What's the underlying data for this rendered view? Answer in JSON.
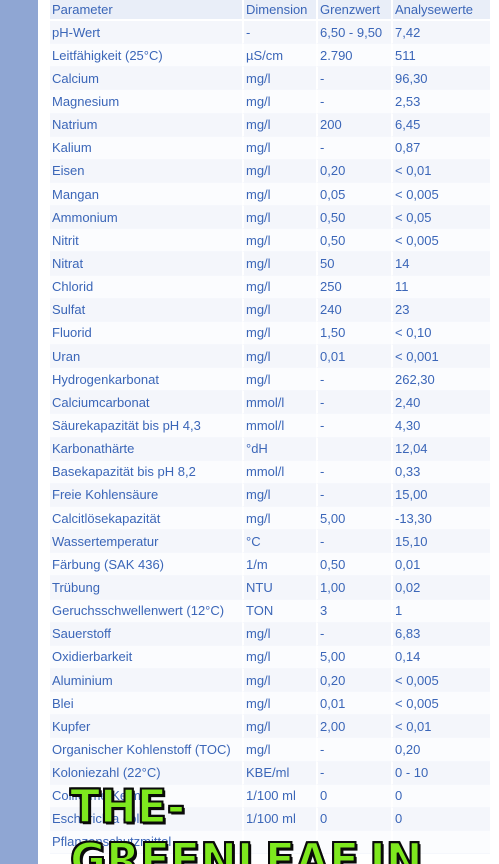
{
  "table": {
    "headers": [
      "Parameter",
      "Dimension",
      "Grenzwert",
      "Analysewerte"
    ],
    "rows": [
      [
        "pH-Wert",
        "-",
        "6,50 - 9,50",
        "7,42"
      ],
      [
        "Leitfähigkeit (25°C)",
        "µS/cm",
        "2.790",
        "511"
      ],
      [
        "Calcium",
        "mg/l",
        "-",
        "96,30"
      ],
      [
        "Magnesium",
        "mg/l",
        "-",
        "2,53"
      ],
      [
        "Natrium",
        "mg/l",
        "200",
        "6,45"
      ],
      [
        "Kalium",
        "mg/l",
        "-",
        "0,87"
      ],
      [
        "Eisen",
        "mg/l",
        "0,20",
        "< 0,01"
      ],
      [
        "Mangan",
        "mg/l",
        "0,05",
        "< 0,005"
      ],
      [
        "Ammonium",
        "mg/l",
        "0,50",
        "< 0,05"
      ],
      [
        "Nitrit",
        "mg/l",
        "0,50",
        "< 0,005"
      ],
      [
        "Nitrat",
        "mg/l",
        "50",
        "14"
      ],
      [
        "Chlorid",
        "mg/l",
        "250",
        "11"
      ],
      [
        "Sulfat",
        "mg/l",
        "240",
        "23"
      ],
      [
        "Fluorid",
        "mg/l",
        "1,50",
        "< 0,10"
      ],
      [
        "Uran",
        "mg/l",
        "0,01",
        "< 0,001"
      ],
      [
        "Hydrogenkarbonat",
        "mg/l",
        "-",
        "262,30"
      ],
      [
        "Calciumcarbonat",
        "mmol/l",
        "-",
        "2,40"
      ],
      [
        "Säurekapazität bis pH 4,3",
        "mmol/l",
        "-",
        "4,30"
      ],
      [
        "Karbonathärte",
        "°dH",
        "",
        "12,04"
      ],
      [
        "Basekapazität bis pH 8,2",
        "mmol/l",
        "-",
        "0,33"
      ],
      [
        "Freie Kohlensäure",
        "mg/l",
        "-",
        "15,00"
      ],
      [
        "Calcitlösekapazität",
        "mg/l",
        "5,00",
        "-13,30"
      ],
      [
        "Wassertemperatur",
        "°C",
        "-",
        "15,10"
      ],
      [
        "Färbung (SAK 436)",
        "1/m",
        "0,50",
        "0,01"
      ],
      [
        "Trübung",
        "NTU",
        "1,00",
        "0,02"
      ],
      [
        "Geruchsschwellenwert (12°C)",
        "TON",
        "3",
        "1"
      ],
      [
        "Sauerstoff",
        "mg/l",
        "-",
        "6,83"
      ],
      [
        "Oxidierbarkeit",
        "mg/l",
        "5,00",
        "0,14"
      ],
      [
        "Aluminium",
        "mg/l",
        "0,20",
        "< 0,005"
      ],
      [
        "Blei",
        "mg/l",
        "0,01",
        "< 0,005"
      ],
      [
        "Kupfer",
        "mg/l",
        "2,00",
        "< 0,01"
      ],
      [
        "Organischer Kohlenstoff (TOC)",
        "mg/l",
        "-",
        "0,20"
      ],
      [
        "Koloniezahl (22°C)",
        "KBE/ml",
        "-",
        "0 - 10"
      ],
      [
        "Coliforme Keime",
        "1/100 ml",
        "0",
        "0"
      ],
      [
        "Escherichia coli",
        "1/100 ml",
        "0",
        "0"
      ],
      [
        "Pflanzenschutzmittel",
        "",
        "",
        ""
      ]
    ]
  },
  "watermark": "THE-GREENLEAF.IN",
  "colors": {
    "text": "#3b66b8",
    "row_odd": "#f4f6fb",
    "row_even": "#fbfcfe",
    "header_bg": "#e9eef8",
    "sidebar": "#8fa6d3",
    "watermark_fill": "#7ee81e"
  }
}
